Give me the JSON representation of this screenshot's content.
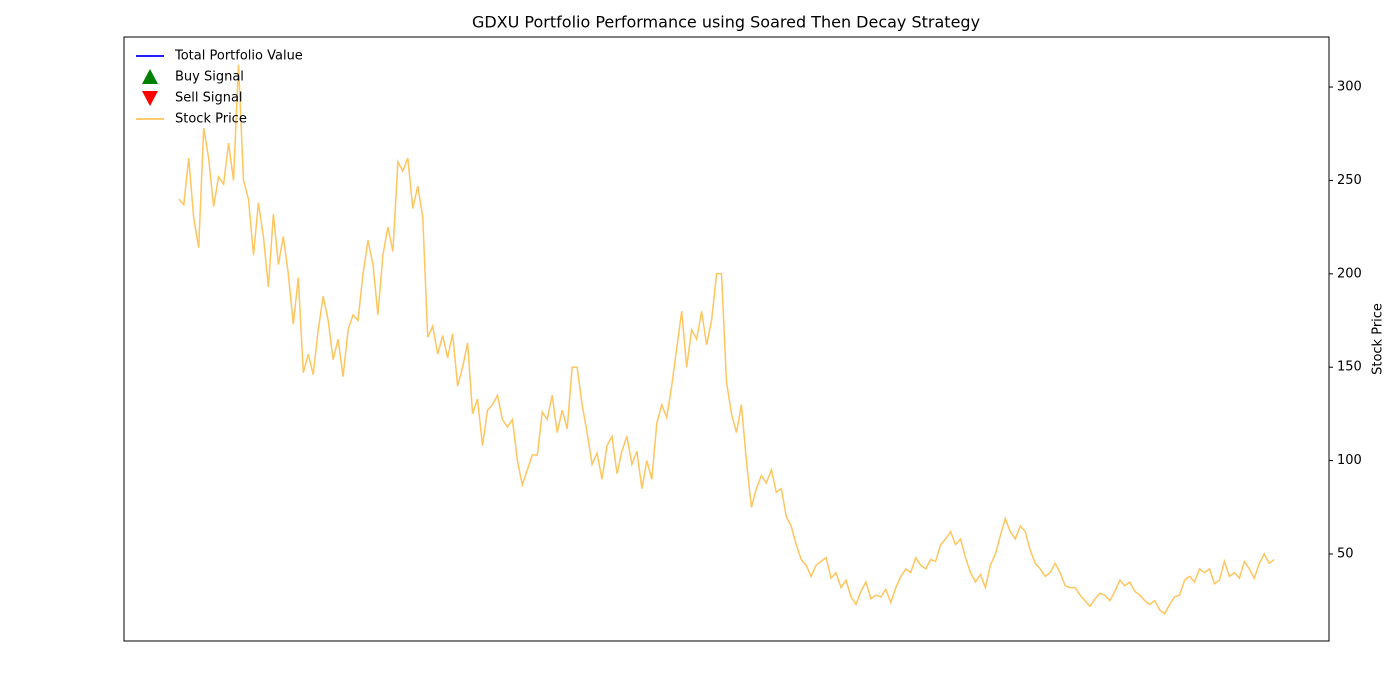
{
  "chart_data": {
    "type": "line",
    "title": "GDXU Portfolio Performance using Soared Then Decay Strategy",
    "y2label": "Stock Price",
    "legend": "upper left",
    "legend_entries": [
      {
        "name": "Total Portfolio Value",
        "color": "#0000ff",
        "marker": "line"
      },
      {
        "name": "Buy Signal",
        "color": "#008000",
        "marker": "triangle-up"
      },
      {
        "name": "Sell Signal",
        "color": "#ff0000",
        "marker": "triangle-down"
      }
    ],
    "series": [
      {
        "name": "Stock Price",
        "color": "#ffc55e",
        "axis": "y2",
        "values": [
          240,
          237,
          262,
          230,
          214,
          278,
          262,
          236,
          252,
          248,
          270,
          250,
          312,
          250,
          240,
          210,
          238,
          220,
          193,
          232,
          205,
          220,
          200,
          173,
          198,
          147,
          157,
          146,
          170,
          188,
          175,
          154,
          165,
          145,
          170,
          178,
          175,
          200,
          218,
          205,
          178,
          210,
          225,
          212,
          260,
          255,
          262,
          235,
          247,
          230,
          166,
          172,
          157,
          167,
          155,
          168,
          140,
          150,
          163,
          125,
          133,
          108,
          127,
          130,
          135,
          122,
          118,
          122,
          100,
          87,
          95,
          103,
          103,
          126,
          122,
          135,
          115,
          127,
          117,
          150,
          150,
          130,
          115,
          98,
          104,
          90,
          108,
          113,
          93,
          105,
          113,
          98,
          105,
          85,
          100,
          90,
          120,
          130,
          123,
          140,
          160,
          180,
          150,
          170,
          165,
          180,
          162,
          175,
          200,
          200,
          142,
          125,
          115,
          130,
          100,
          75,
          85,
          92,
          88,
          95,
          83,
          85,
          70,
          65,
          55,
          47,
          44,
          38,
          44,
          46,
          48,
          37,
          40,
          32,
          36,
          27,
          23,
          30,
          35,
          26,
          28,
          27,
          31,
          24,
          32,
          38,
          42,
          40,
          48,
          44,
          42,
          47,
          46,
          55,
          58,
          62,
          55,
          58,
          48,
          40,
          35,
          39,
          32,
          44,
          50,
          60,
          69,
          62,
          58,
          65,
          62,
          52,
          45,
          42,
          38,
          40,
          45,
          40,
          33,
          32,
          32,
          28,
          25,
          22,
          26,
          29,
          28,
          25,
          30,
          36,
          33,
          35,
          30,
          28,
          25,
          23,
          25,
          20,
          18,
          23,
          27,
          28,
          36,
          38,
          35,
          42,
          40,
          42,
          34,
          36,
          46,
          38,
          40,
          37,
          46,
          42,
          37,
          45,
          50,
          45,
          47
        ]
      }
    ],
    "y2lim": [
      3.4,
      326.8
    ],
    "y2ticks": [
      50,
      100,
      150,
      200,
      250,
      300
    ]
  }
}
